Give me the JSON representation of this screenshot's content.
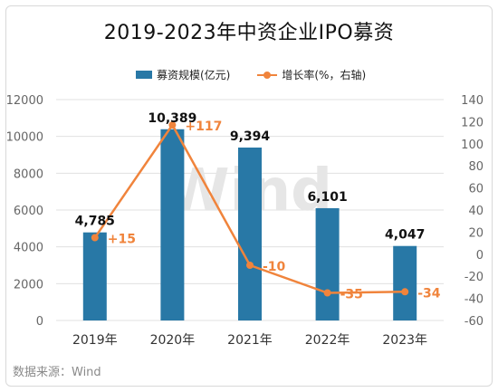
{
  "title": "2019-2023年中资企业IPO募资",
  "source": "数据来源：Wind",
  "watermark": "Wind",
  "colors": {
    "bar": "#2878a6",
    "line": "#f0843c",
    "grid": "#e0e0e0"
  },
  "legend": {
    "bar_label": "募资规模(亿元)",
    "line_label": "增长率(%，右轴)"
  },
  "chart_data": {
    "type": "bar",
    "categories": [
      "2019年",
      "2020年",
      "2021年",
      "2022年",
      "2023年"
    ],
    "series": [
      {
        "name": "募资规模(亿元)",
        "type": "bar",
        "axis": "left",
        "values": [
          4785,
          10389,
          9394,
          6101,
          4047
        ],
        "labels": [
          "4,785",
          "10,389",
          "9,394",
          "6,101",
          "4,047"
        ]
      },
      {
        "name": "增长率(%，右轴)",
        "type": "line",
        "axis": "right",
        "values": [
          15,
          117,
          -10,
          -35,
          -34
        ],
        "labels": [
          "+15",
          "+117",
          "-10",
          "-35",
          "-34"
        ]
      }
    ],
    "y_left": {
      "min": 0,
      "max": 12000,
      "ticks": [
        "0",
        "2000",
        "4000",
        "6000",
        "8000",
        "10000",
        "12000"
      ]
    },
    "y_right": {
      "min": -60,
      "max": 140,
      "ticks": [
        "-60",
        "-40",
        "-20",
        "0",
        "20",
        "40",
        "60",
        "80",
        "100",
        "120",
        "140"
      ]
    },
    "grid": true,
    "legend_position": "top"
  }
}
